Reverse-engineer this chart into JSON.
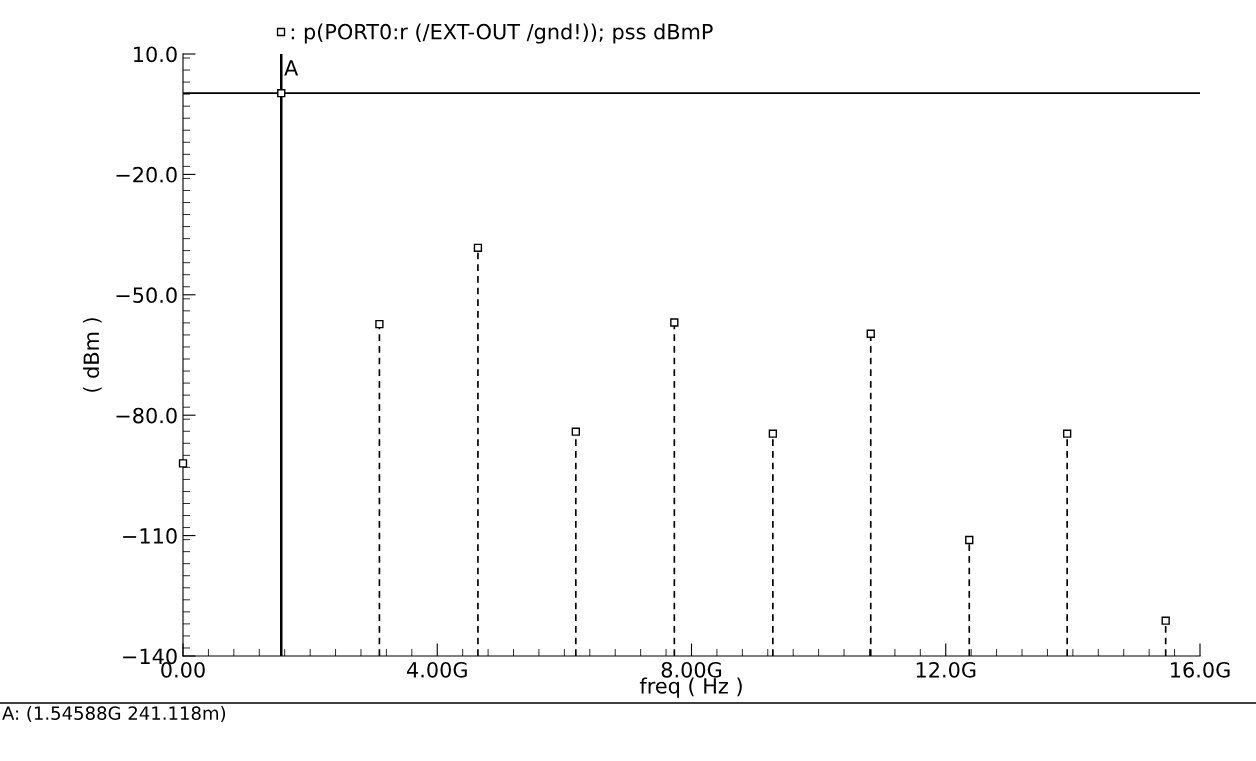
{
  "chart_data": {
    "type": "lollipop",
    "xlabel": "freq ( Hz )",
    "ylabel": "( dBm )",
    "x": [
      0,
      1.54588,
      3.09,
      4.64,
      6.18,
      7.73,
      9.28,
      10.82,
      12.37,
      13.91,
      15.46
    ],
    "series": [
      {
        "name": ": p(PORT0:r (/EXT-OUT /gnd!)); pss dBmP",
        "color": "#000000",
        "line_style": "dashed",
        "values": [
          -92.0,
          0.241118,
          -57.3,
          -38.3,
          -84.1,
          -56.9,
          -84.6,
          -59.7,
          -111.1,
          -84.6,
          -131.2
        ],
        "errors": [
          null,
          null,
          [
            -140,
            -57.3
          ],
          [
            -140,
            -38.3
          ],
          [
            -140,
            -84.1
          ],
          [
            -140,
            -56.9
          ],
          [
            -140,
            -84.6
          ],
          [
            -140,
            -59.7
          ],
          [
            -140,
            -111.1
          ],
          [
            -140,
            -84.6
          ],
          [
            -140,
            -131.2
          ]
        ]
      }
    ],
    "marker": "square",
    "xlim": [
      0,
      16
    ],
    "xticks": [
      {
        "value": 0,
        "label": "0.00"
      },
      {
        "value": 4,
        "label": "4.00G"
      },
      {
        "value": 8,
        "label": "8.00G"
      },
      {
        "value": 12,
        "label": "12.0G"
      },
      {
        "value": 16,
        "label": "16.0G"
      }
    ],
    "ylim": [
      -140,
      10
    ],
    "yticks": [
      {
        "value": 10,
        "label": "10.0"
      },
      {
        "value": -20,
        "label": "−20.0"
      },
      {
        "value": -50,
        "label": "−50.0"
      },
      {
        "value": -80,
        "label": "−80.0"
      },
      {
        "value": -110,
        "label": "−110"
      },
      {
        "value": -140,
        "label": "−140"
      }
    ],
    "ref_lines": [
      {
        "axis": "x",
        "value": 1.54588,
        "label": "A",
        "color": "#000000",
        "line_style": "solid"
      },
      {
        "axis": "y",
        "value": 0.241118,
        "color": "#000000",
        "line_style": "solid"
      }
    ],
    "annotations": [
      "A: (1.54588G 241.118m)"
    ],
    "legend": "top",
    "grid": false
  }
}
